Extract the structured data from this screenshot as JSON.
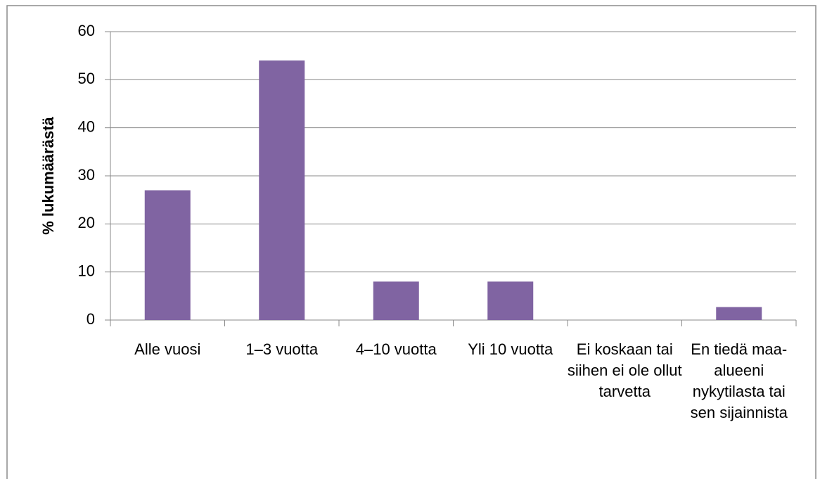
{
  "chart_data": {
    "type": "bar",
    "y_label": "% lukumäärästä",
    "categories": [
      "Alle vuosi",
      "1–3 vuotta",
      "4–10 vuotta",
      "Yli 10 vuotta",
      "Ei koskaan tai siihen ei ole ollut tarvetta",
      "En tiedä maa-alueeni nykytilasta tai sen sijainnista"
    ],
    "values": [
      27,
      54,
      8,
      8,
      0,
      2.7
    ],
    "color": "#8064a2",
    "ylim": [
      0,
      60
    ],
    "yticks": [
      0,
      10,
      20,
      30,
      40,
      50,
      60
    ],
    "grid": true
  }
}
